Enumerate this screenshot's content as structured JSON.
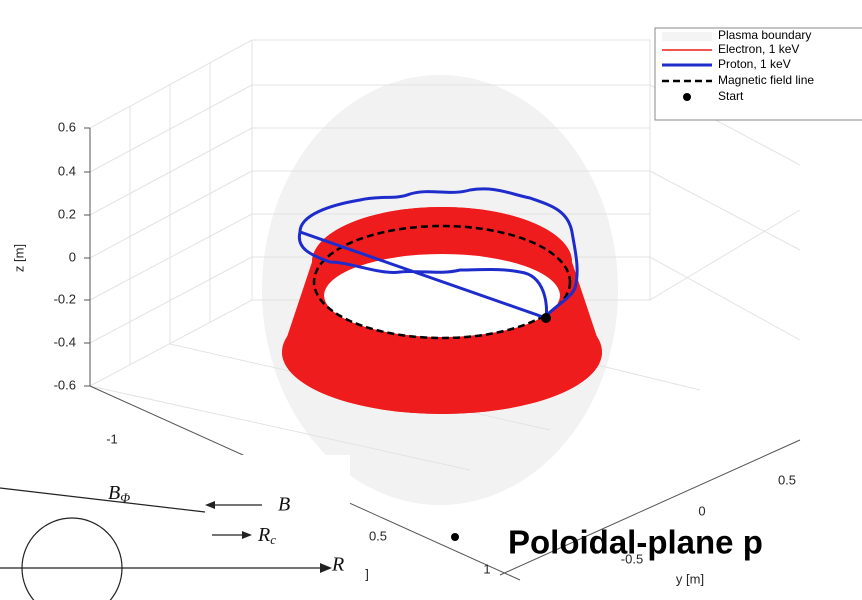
{
  "legend": {
    "items": [
      "Plasma boundary",
      "Electron, 1 keV",
      "Proton, 1 keV",
      "Magnetic field line",
      "Start"
    ]
  },
  "axes": {
    "z_label": "z [m]",
    "y_label": "y [m]",
    "x_label_fragment": "]",
    "z_ticks": [
      "0.6",
      "0.4",
      "0.2",
      "0",
      "-0.2",
      "-0.4",
      "-0.6"
    ],
    "x_ticks": [
      "-1",
      "0.5",
      "1"
    ],
    "y_ticks": [
      "0.5",
      "0",
      "-0.5"
    ]
  },
  "diagram": {
    "b_phi": "B",
    "b_phi_sub": "Φ",
    "b": "B",
    "rc": "R",
    "rc_sub": "c",
    "r": "R"
  },
  "bullet": {
    "text": "Poloidal-plane p"
  }
}
